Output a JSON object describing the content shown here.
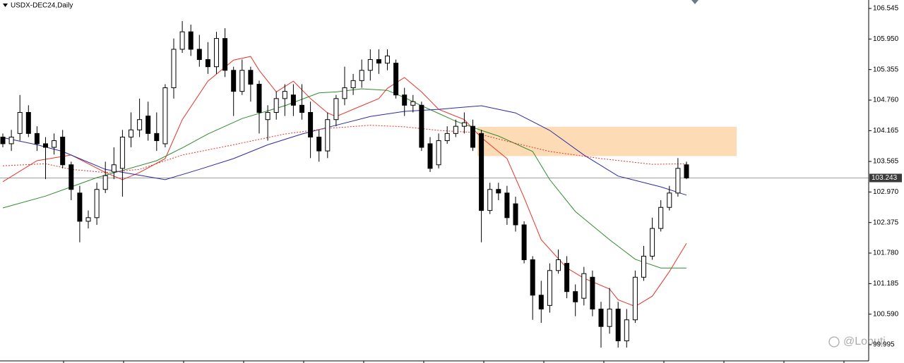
{
  "chart_data": {
    "type": "candlestick",
    "title": "USDX-DEC24,Daily",
    "open": [
      104.04,
      103.91,
      104.11,
      104.52,
      104.11,
      103.91,
      103.84,
      104.04,
      103.5,
      102.95,
      102.4,
      102.47,
      103.02,
      103.36,
      103.43,
      104.04,
      104.18,
      104.45,
      104.11,
      103.91,
      105.0,
      105.75,
      106.09,
      105.75,
      105.55,
      105.41,
      105.96,
      105.34,
      104.93,
      105.34,
      105.07,
      104.38,
      104.52,
      104.79,
      104.86,
      104.66,
      104.52,
      104.04,
      103.77,
      104.38,
      104.79,
      105.0,
      105.14,
      105.34,
      105.55,
      105.48,
      105.48,
      104.86,
      104.66,
      104.66,
      103.91,
      103.5,
      103.97,
      104.11,
      104.25,
      104.25,
      104.11,
      102.61,
      103.02,
      102.95,
      102.74,
      102.33,
      101.65,
      100.96,
      100.76,
      101.44,
      101.58,
      101.03,
      100.9,
      101.31,
      100.69,
      100.35,
      100.69,
      100.07,
      100.48,
      101.31,
      101.72,
      102.26,
      102.67,
      102.95,
      103.5
    ],
    "high": [
      104.11,
      104.18,
      104.86,
      104.66,
      104.25,
      104.04,
      104.11,
      104.18,
      103.56,
      103.09,
      102.61,
      103.15,
      103.56,
      103.84,
      104.18,
      104.52,
      104.79,
      104.73,
      104.52,
      105.07,
      105.96,
      106.3,
      106.23,
      106.03,
      105.89,
      106.09,
      106.16,
      105.41,
      105.55,
      105.41,
      105.14,
      104.66,
      104.93,
      105.07,
      105.07,
      105.07,
      104.73,
      104.18,
      104.52,
      104.86,
      105.41,
      105.27,
      105.55,
      105.75,
      105.75,
      105.75,
      105.55,
      105.0,
      104.86,
      104.73,
      104.04,
      104.11,
      104.25,
      104.38,
      104.52,
      104.38,
      104.18,
      103.15,
      103.15,
      103.09,
      102.88,
      102.4,
      101.72,
      101.24,
      101.58,
      101.85,
      101.72,
      101.17,
      101.51,
      101.44,
      100.83,
      101.1,
      100.83,
      100.69,
      101.44,
      101.92,
      102.47,
      102.81,
      103.09,
      103.63,
      103.56
    ],
    "low": [
      103.84,
      103.77,
      103.97,
      104.04,
      103.77,
      103.22,
      103.7,
      103.43,
      102.81,
      101.99,
      102.26,
      102.33,
      102.95,
      103.22,
      102.88,
      103.84,
      104.04,
      103.97,
      103.77,
      103.84,
      104.79,
      105.68,
      105.62,
      105.41,
      105.27,
      105.27,
      105.21,
      104.45,
      104.86,
      104.73,
      104.11,
      103.97,
      104.38,
      104.45,
      104.45,
      104.38,
      103.63,
      103.56,
      103.63,
      104.25,
      104.66,
      104.86,
      105.0,
      105.14,
      105.27,
      105.34,
      104.79,
      104.45,
      104.52,
      103.77,
      103.36,
      103.43,
      103.91,
      104.04,
      104.11,
      103.77,
      101.99,
      102.54,
      102.81,
      102.33,
      102.2,
      101.58,
      100.48,
      100.42,
      100.62,
      101.38,
      100.9,
      100.55,
      100.76,
      100.55,
      99.94,
      100.21,
      99.94,
      99.94,
      100.42,
      101.24,
      101.65,
      102.2,
      102.61,
      102.88,
      103.22
    ],
    "close": [
      103.91,
      104.04,
      104.52,
      104.11,
      103.91,
      103.84,
      103.97,
      103.5,
      103.02,
      102.4,
      102.47,
      103.02,
      103.29,
      103.5,
      104.04,
      104.18,
      104.38,
      104.11,
      103.97,
      105.0,
      105.75,
      106.09,
      105.75,
      105.55,
      105.41,
      105.96,
      105.34,
      104.93,
      105.34,
      105.07,
      104.52,
      104.52,
      104.79,
      104.93,
      104.66,
      104.52,
      104.04,
      103.77,
      104.38,
      104.79,
      105.0,
      105.14,
      105.34,
      105.55,
      105.48,
      105.62,
      104.86,
      104.66,
      104.73,
      103.84,
      103.43,
      103.97,
      104.11,
      104.25,
      104.32,
      103.84,
      102.61,
      103.02,
      102.95,
      102.47,
      102.33,
      101.65,
      100.96,
      100.69,
      101.44,
      101.65,
      101.03,
      100.83,
      101.38,
      100.69,
      100.35,
      100.69,
      100.07,
      100.48,
      101.31,
      101.72,
      102.26,
      102.67,
      102.95,
      103.43,
      103.243
    ],
    "up_color": "#ffffff",
    "down_color": "#000000",
    "series": [
      {
        "color": "#e8332a",
        "dash": false,
        "x": [
          0,
          4,
          8,
          12,
          14,
          16,
          19,
          21,
          24,
          27,
          29,
          30,
          32,
          34,
          36,
          38,
          39,
          42,
          44,
          45,
          47,
          49,
          51,
          54,
          56,
          59,
          61,
          63,
          66,
          68,
          71,
          72,
          74,
          76,
          78,
          80
        ],
        "values": [
          103.17,
          103.58,
          103.69,
          103.35,
          103.21,
          103.35,
          103.62,
          104.38,
          105.13,
          105.54,
          105.61,
          105.34,
          104.92,
          105.13,
          104.79,
          104.51,
          104.44,
          104.65,
          104.79,
          104.99,
          105.2,
          104.92,
          104.58,
          104.38,
          104.03,
          103.62,
          102.86,
          102.04,
          101.49,
          101.29,
          101.08,
          100.87,
          100.74,
          100.94,
          101.42,
          101.97
        ]
      },
      {
        "color": "#2e8b2e",
        "dash": false,
        "x": [
          0,
          5,
          8,
          11,
          14,
          18,
          21,
          24,
          28,
          33,
          37,
          39,
          42,
          45,
          47,
          49,
          53,
          56,
          58,
          62,
          64,
          67,
          71,
          74,
          77,
          80
        ],
        "values": [
          102.66,
          102.89,
          103.07,
          103.25,
          103.39,
          103.58,
          103.83,
          104.1,
          104.4,
          104.65,
          104.9,
          104.92,
          104.98,
          104.95,
          104.81,
          104.65,
          104.35,
          104.17,
          104.06,
          103.76,
          103.21,
          102.59,
          102.04,
          101.66,
          101.49,
          101.49
        ]
      },
      {
        "color": "#2a2aa8",
        "dash": false,
        "x": [
          0,
          4,
          7,
          12,
          19,
          23,
          27,
          31,
          35,
          39,
          43,
          47,
          51,
          56,
          60,
          64,
          68,
          72,
          77,
          80
        ],
        "values": [
          104.03,
          103.89,
          103.76,
          103.41,
          103.21,
          103.41,
          103.62,
          103.89,
          104.1,
          104.27,
          104.44,
          104.54,
          104.58,
          104.65,
          104.51,
          104.17,
          103.69,
          103.28,
          103.07,
          102.91
        ]
      },
      {
        "color": "#e8332a",
        "dash": true,
        "x": [
          0,
          5,
          8,
          12,
          16,
          21,
          27,
          33,
          38,
          43,
          47,
          51,
          55,
          59,
          64,
          70,
          76,
          80
        ],
        "values": [
          103.48,
          103.52,
          103.41,
          103.35,
          103.41,
          103.69,
          103.89,
          104.1,
          104.21,
          104.27,
          104.24,
          104.17,
          104.13,
          103.96,
          103.76,
          103.62,
          103.51,
          103.52
        ]
      }
    ],
    "zone": [
      103.67,
      104.24
    ],
    "zone_color": "#fddcb5",
    "last_price": 103.243,
    "ylim": [
      99.68,
      106.71
    ],
    "yticks": [
      106.545,
      {
        "value": 105.95,
        "label": "105.950"
      },
      105.355,
      {
        "value": 104.76,
        "label": "104.760"
      },
      104.165,
      103.565,
      {
        "value": 102.97,
        "label": "102.970"
      },
      102.375,
      {
        "value": 101.78,
        "label": "101.780"
      },
      101.185,
      {
        "value": 100.59,
        "label": "100.590"
      },
      99.995
    ],
    "watermark": "@Lobuti"
  }
}
